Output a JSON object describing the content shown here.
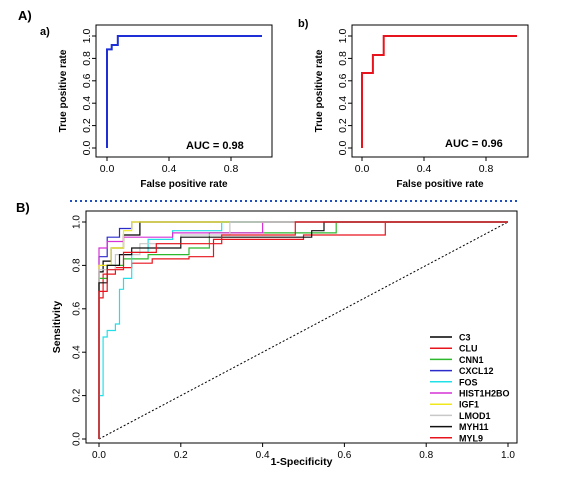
{
  "panels": {
    "A": "A)",
    "a": "a)",
    "b": "b)",
    "B": "B)"
  },
  "chart_data": [
    {
      "id": "roc_a",
      "type": "line",
      "xlabel": "False positive rate",
      "ylabel": "True positive rate",
      "annotation": "AUC = 0.98",
      "xlim": [
        0,
        1
      ],
      "ylim": [
        0,
        1
      ],
      "xticks": [
        "0.0",
        "0.4",
        "0.8"
      ],
      "yticks": [
        "0.0",
        "0.2",
        "0.4",
        "0.6",
        "0.8",
        "1.0"
      ],
      "color": "#1f2fd6",
      "series": [
        {
          "x": [
            0,
            0,
            0.03,
            0.03,
            0.07,
            0.07,
            1
          ],
          "y": [
            0,
            0.88,
            0.88,
            0.92,
            0.92,
            1,
            1
          ]
        }
      ]
    },
    {
      "id": "roc_b",
      "type": "line",
      "xlabel": "False positive rate",
      "ylabel": "True positive rate",
      "annotation": "AUC = 0.96",
      "xlim": [
        0,
        1
      ],
      "ylim": [
        0,
        1
      ],
      "xticks": [
        "0.0",
        "0.4",
        "0.8"
      ],
      "yticks": [
        "0.0",
        "0.2",
        "0.4",
        "0.6",
        "0.8",
        "1.0"
      ],
      "color": "#e8141d",
      "series": [
        {
          "x": [
            0,
            0,
            0.07,
            0.07,
            0.14,
            0.14,
            1
          ],
          "y": [
            0,
            0.67,
            0.67,
            0.83,
            0.83,
            1,
            1
          ]
        }
      ]
    },
    {
      "id": "roc_B",
      "type": "line",
      "xlabel": "1-Specificity",
      "ylabel": "Sensitivity",
      "xlim": [
        0,
        1
      ],
      "ylim": [
        0,
        1
      ],
      "xticks": [
        "0.0",
        "0.2",
        "0.4",
        "0.6",
        "0.8",
        "1.0"
      ],
      "yticks": [
        "0.0",
        "0.2",
        "0.4",
        "0.6",
        "0.8",
        "1.0"
      ],
      "grid": false,
      "legend_position": "bottom-right",
      "diagonal": true,
      "series": [
        {
          "name": "C3",
          "color": "#000000",
          "x": [
            0,
            0,
            0.01,
            0.01,
            0.03,
            0.03,
            0.06,
            0.06,
            0.1,
            0.1,
            0.28,
            0.28,
            1
          ],
          "y": [
            0,
            0.77,
            0.77,
            0.82,
            0.82,
            0.88,
            0.88,
            0.94,
            0.94,
            1,
            1,
            1,
            1
          ]
        },
        {
          "name": "CLU",
          "color": "#e8141d",
          "x": [
            0,
            0,
            0.01,
            0.01,
            0.04,
            0.04,
            0.08,
            0.08,
            0.13,
            0.13,
            0.22,
            0.22,
            0.28,
            0.28,
            0.5,
            0.5,
            0.7,
            0.7,
            1
          ],
          "y": [
            0,
            0.65,
            0.65,
            0.76,
            0.76,
            0.79,
            0.79,
            0.81,
            0.81,
            0.83,
            0.83,
            0.84,
            0.84,
            0.92,
            0.92,
            0.94,
            0.94,
            1,
            1
          ]
        },
        {
          "name": "CNN1",
          "color": "#2eb82e",
          "x": [
            0,
            0,
            0.02,
            0.02,
            0.06,
            0.06,
            0.12,
            0.12,
            0.22,
            0.22,
            0.27,
            0.27,
            0.58,
            0.58,
            1
          ],
          "y": [
            0,
            0.74,
            0.74,
            0.8,
            0.8,
            0.83,
            0.83,
            0.85,
            0.85,
            0.88,
            0.88,
            0.95,
            0.95,
            1,
            1
          ]
        },
        {
          "name": "CXCL12",
          "color": "#2b2bcc",
          "x": [
            0,
            0,
            0.02,
            0.02,
            0.05,
            0.05,
            0.08,
            0.08,
            1
          ],
          "y": [
            0,
            0.84,
            0.84,
            0.93,
            0.93,
            0.97,
            0.97,
            1,
            1
          ]
        },
        {
          "name": "FOS",
          "color": "#22e0e8",
          "x": [
            0,
            0,
            0.01,
            0.01,
            0.02,
            0.02,
            0.04,
            0.04,
            0.05,
            0.05,
            0.06,
            0.06,
            0.08,
            0.08,
            0.12,
            0.12,
            0.18,
            0.18,
            0.3,
            0.3,
            1
          ],
          "y": [
            0,
            0.2,
            0.2,
            0.47,
            0.47,
            0.5,
            0.5,
            0.53,
            0.53,
            0.69,
            0.69,
            0.74,
            0.74,
            0.86,
            0.86,
            0.92,
            0.92,
            0.96,
            0.96,
            1,
            1
          ]
        },
        {
          "name": "HIST1H2BO",
          "color": "#d632d6",
          "x": [
            0,
            0,
            0.02,
            0.02,
            0.06,
            0.06,
            0.18,
            0.18,
            0.4,
            0.4,
            1
          ],
          "y": [
            0,
            0.88,
            0.88,
            0.91,
            0.91,
            0.93,
            0.93,
            0.95,
            0.95,
            1,
            1
          ]
        },
        {
          "name": "IGF1",
          "color": "#f0e81c",
          "x": [
            0,
            0,
            0.03,
            0.03,
            0.06,
            0.06,
            0.08,
            0.08,
            0.22,
            0.22,
            1
          ],
          "y": [
            0,
            0.8,
            0.8,
            0.88,
            0.88,
            0.96,
            0.96,
            1,
            1,
            1,
            1
          ]
        },
        {
          "name": "LMOD1",
          "color": "#c8c8c8",
          "x": [
            0,
            0,
            0.04,
            0.04,
            0.1,
            0.1,
            0.2,
            0.2,
            0.32,
            0.32,
            1
          ],
          "y": [
            0,
            0.78,
            0.78,
            0.85,
            0.85,
            0.9,
            0.9,
            0.94,
            0.94,
            1,
            1
          ]
        },
        {
          "name": "MYH11",
          "color": "#111111",
          "x": [
            0,
            0,
            0.02,
            0.02,
            0.05,
            0.05,
            0.08,
            0.08,
            0.2,
            0.2,
            0.52,
            0.52,
            0.55,
            0.55,
            1
          ],
          "y": [
            0,
            0.72,
            0.72,
            0.8,
            0.8,
            0.85,
            0.85,
            0.88,
            0.88,
            0.93,
            0.93,
            0.96,
            0.96,
            1,
            1
          ]
        },
        {
          "name": "MYL9",
          "color": "#e8141d",
          "x": [
            0,
            0,
            0.02,
            0.02,
            0.06,
            0.06,
            0.14,
            0.14,
            0.3,
            0.3,
            0.48,
            0.48,
            1
          ],
          "y": [
            0,
            0.68,
            0.68,
            0.78,
            0.78,
            0.86,
            0.86,
            0.9,
            0.9,
            0.94,
            0.94,
            1,
            1
          ]
        }
      ]
    }
  ]
}
